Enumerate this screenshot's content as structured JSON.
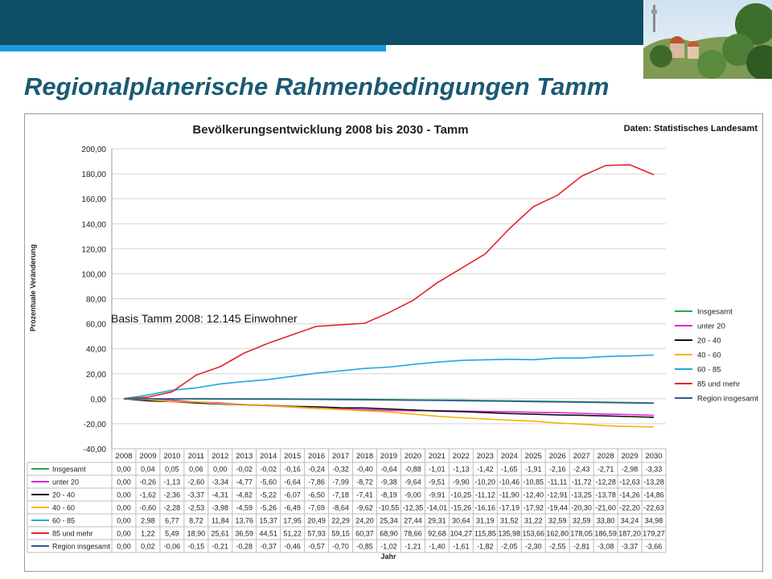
{
  "slide": {
    "title": "Regionalplanerische Rahmenbedingungen Tamm",
    "source": "Daten:  Statistisches  Landesamt"
  },
  "photo": {
    "description_icon": "city-skyline-photo"
  },
  "chart_data": {
    "type": "line",
    "title": "Bevölkerungsentwicklung 2008 bis 2030 - Tamm",
    "xlabel": "Jahr",
    "ylabel": "Prozentuale Veränderung",
    "ylim": [
      -40,
      200
    ],
    "ytick_step": 20,
    "grid": true,
    "legend_position": "right",
    "annotation": "Basis Tamm 2008: 12.145 Einwohner",
    "x": [
      "2008",
      "2009",
      "2010",
      "2011",
      "2012",
      "2013",
      "2014",
      "2015",
      "2016",
      "2017",
      "2018",
      "2019",
      "2020",
      "2021",
      "2022",
      "2023",
      "2024",
      "2025",
      "2026",
      "2027",
      "2028",
      "2029",
      "2030"
    ],
    "series": [
      {
        "name": "Insgesamt",
        "color": "#2aa55a",
        "values": [
          0.0,
          0.04,
          0.05,
          0.06,
          0.0,
          -0.02,
          -0.02,
          -0.16,
          -0.24,
          -0.32,
          -0.4,
          -0.64,
          -0.88,
          -1.01,
          -1.13,
          -1.42,
          -1.65,
          -1.91,
          -2.16,
          -2.43,
          -2.71,
          -2.98,
          -3.33
        ]
      },
      {
        "name": "unter 20",
        "color": "#e022e0",
        "values": [
          0.0,
          -0.26,
          -1.13,
          -2.6,
          -3.34,
          -4.77,
          -5.6,
          -6.64,
          -7.86,
          -7.99,
          -8.72,
          -9.38,
          -9.64,
          -9.51,
          -9.9,
          -10.2,
          -10.46,
          -10.85,
          -11.11,
          -11.72,
          -12.28,
          -12.63,
          -13.28
        ]
      },
      {
        "name": "20 - 40",
        "color": "#111111",
        "values": [
          0.0,
          -1.62,
          -2.36,
          -3.37,
          -4.31,
          -4.82,
          -5.22,
          -6.07,
          -6.5,
          -7.18,
          -7.41,
          -8.19,
          -9.0,
          -9.91,
          -10.25,
          -11.12,
          -11.9,
          -12.4,
          -12.91,
          -13.25,
          -13.78,
          -14.26,
          -14.86
        ]
      },
      {
        "name": "40 - 60",
        "color": "#f2b400",
        "values": [
          0.0,
          -0.6,
          -2.28,
          -2.53,
          -3.98,
          -4.59,
          -5.26,
          -6.49,
          -7.69,
          -8.64,
          -9.62,
          -10.55,
          -12.35,
          -14.01,
          -15.26,
          -16.16,
          -17.19,
          -17.92,
          -19.44,
          -20.3,
          -21.6,
          -22.2,
          -22.63
        ]
      },
      {
        "name": "60 - 85",
        "color": "#1fa8dc",
        "values": [
          0.0,
          2.98,
          6.77,
          8.72,
          11.84,
          13.76,
          15.37,
          17.95,
          20.49,
          22.29,
          24.2,
          25.34,
          27.44,
          29.31,
          30.64,
          31.19,
          31.52,
          31.22,
          32.59,
          32.59,
          33.8,
          34.24,
          34.98
        ]
      },
      {
        "name": "85 und mehr",
        "color": "#e3242b",
        "values": [
          0.0,
          1.22,
          5.49,
          18.9,
          25.61,
          36.59,
          44.51,
          51.22,
          57.93,
          59.15,
          60.37,
          68.9,
          78.66,
          92.68,
          104.27,
          115.85,
          135.98,
          153.66,
          162.8,
          178.05,
          186.59,
          187.2,
          179.27
        ]
      },
      {
        "name": "Region insgesamt",
        "color": "#2e5d8e",
        "values": [
          0.0,
          0.02,
          -0.06,
          -0.15,
          -0.21,
          -0.28,
          -0.37,
          -0.46,
          -0.57,
          -0.7,
          -0.85,
          -1.02,
          -1.21,
          -1.4,
          -1.61,
          -1.82,
          -2.05,
          -2.3,
          -2.55,
          -2.81,
          -3.08,
          -3.37,
          -3.66
        ]
      }
    ],
    "table": {
      "display": [
        [
          "0,00",
          "0,04",
          "0,05",
          "0,06",
          "0,00",
          "-0,02",
          "-0,02",
          "-0,16",
          "-0,24",
          "-0,32",
          "-0,40",
          "-0,64",
          "-0,88",
          "-1,01",
          "-1,13",
          "-1,42",
          "-1,65",
          "-1,91",
          "-2,16",
          "-2,43",
          "-2,71",
          "-2,98",
          "-3,33"
        ],
        [
          "0,00",
          "-0,26",
          "-1,13",
          "-2,60",
          "-3,34",
          "-4,77",
          "-5,60",
          "-6,64",
          "-7,86",
          "-7,99",
          "-8,72",
          "-9,38",
          "-9,64",
          "-9,51",
          "-9,90",
          "-10,20",
          "-10,46",
          "-10,85",
          "-11,11",
          "-11,72",
          "-12,28",
          "-12,63",
          "-13,28"
        ],
        [
          "0,00",
          "-1,62",
          "-2,36",
          "-3,37",
          "-4,31",
          "-4,82",
          "-5,22",
          "-6,07",
          "-6,50",
          "-7,18",
          "-7,41",
          "-8,19",
          "-9,00",
          "-9,91",
          "-10,25",
          "-11,12",
          "-11,90",
          "-12,40",
          "-12,91",
          "-13,25",
          "-13,78",
          "-14,26",
          "-14,86"
        ],
        [
          "0,00",
          "-0,60",
          "-2,28",
          "-2,53",
          "-3,98",
          "-4,59",
          "-5,26",
          "-6,49",
          "-7,69",
          "-8,64",
          "-9,62",
          "-10,55",
          "-12,35",
          "-14,01",
          "-15,26",
          "-16,16",
          "-17,19",
          "-17,92",
          "-19,44",
          "-20,30",
          "-21,60",
          "-22,20",
          "-22,63"
        ],
        [
          "0,00",
          "2,98",
          "6,77",
          "8,72",
          "11,84",
          "13,76",
          "15,37",
          "17,95",
          "20,49",
          "22,29",
          "24,20",
          "25,34",
          "27,44",
          "29,31",
          "30,64",
          "31,19",
          "31,52",
          "31,22",
          "32,59",
          "32,59",
          "33,80",
          "34,24",
          "34,98"
        ],
        [
          "0,00",
          "1,22",
          "5,49",
          "18,90",
          "25,61",
          "36,59",
          "44,51",
          "51,22",
          "57,93",
          "59,15",
          "60,37",
          "68,90",
          "78,66",
          "92,68",
          "104,27",
          "115,85",
          "135,98",
          "153,66",
          "162,80",
          "178,05",
          "186,59",
          "187,20",
          "179,27"
        ],
        [
          "0,00",
          "0,02",
          "-0,06",
          "-0,15",
          "-0,21",
          "-0,28",
          "-0,37",
          "-0,46",
          "-0,57",
          "-0,70",
          "-0,85",
          "-1,02",
          "-1,21",
          "-1,40",
          "-1,61",
          "-1,82",
          "-2,05",
          "-2,30",
          "-2,55",
          "-2,81",
          "-3,08",
          "-3,37",
          "-3,66"
        ]
      ]
    }
  }
}
